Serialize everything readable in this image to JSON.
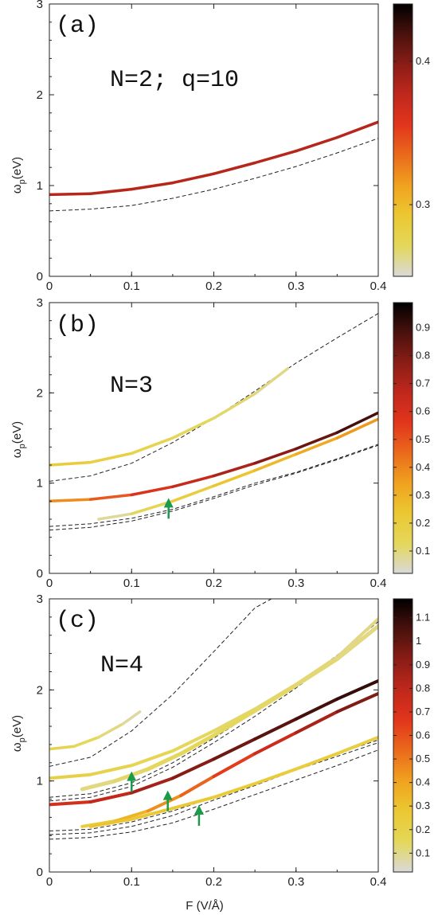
{
  "figure": {
    "xlabel": "F (V/Å)",
    "ylabel_main": "ω",
    "ylabel_sub": "p",
    "ylabel_unit": "(eV)"
  },
  "chart_data": [
    {
      "type": "line",
      "panel_label": "(a)",
      "annotation": "N=2; q=10",
      "x_ticks": [
        "0",
        "0.1",
        "0.2",
        "0.3",
        "0.4"
      ],
      "y_ticks": [
        "0",
        "1",
        "2",
        "3"
      ],
      "xlim": [
        0,
        0.4
      ],
      "ylim": [
        0,
        3
      ],
      "colorbar": {
        "range": [
          0.25,
          0.44
        ],
        "ticks": [
          0.3,
          0.4
        ],
        "tick_labels": [
          "0.3",
          "0.4"
        ]
      },
      "curves": [
        {
          "x": [
            0,
            0.05,
            0.1,
            0.15,
            0.2,
            0.25,
            0.3,
            0.35,
            0.4
          ],
          "y": [
            0.9,
            0.91,
            0.96,
            1.03,
            1.13,
            1.25,
            1.38,
            1.53,
            1.7
          ],
          "c": [
            0.38,
            0.38,
            0.38,
            0.38,
            0.38,
            0.38,
            0.38,
            0.38,
            0.38
          ],
          "w": 3.5
        }
      ],
      "dashed": [
        {
          "x": [
            0,
            0.05,
            0.1,
            0.15,
            0.2,
            0.25,
            0.3,
            0.35,
            0.4
          ],
          "y": [
            0.72,
            0.74,
            0.78,
            0.86,
            0.96,
            1.08,
            1.21,
            1.36,
            1.52
          ]
        }
      ],
      "arrows": []
    },
    {
      "type": "line",
      "panel_label": "(b)",
      "annotation": "N=3",
      "x_ticks": [
        "0",
        "0.1",
        "0.2",
        "0.3",
        "0.4"
      ],
      "y_ticks": [
        "0",
        "1",
        "2",
        "3"
      ],
      "xlim": [
        0,
        0.4
      ],
      "ylim": [
        0,
        3
      ],
      "colorbar": {
        "range": [
          0.02,
          0.99
        ],
        "ticks": [
          0.1,
          0.2,
          0.3,
          0.4,
          0.5,
          0.6,
          0.7,
          0.8,
          0.9
        ],
        "tick_labels": [
          "0.1",
          "0.2",
          "0.3",
          "0.4",
          "0.5",
          "0.6",
          "0.7",
          "0.8",
          "0.9"
        ]
      },
      "curves": [
        {
          "x": [
            0,
            0.05,
            0.1,
            0.15,
            0.2,
            0.25,
            0.29
          ],
          "y": [
            1.2,
            1.23,
            1.33,
            1.5,
            1.72,
            1.99,
            2.27
          ],
          "c": [
            0.22,
            0.2,
            0.17,
            0.14,
            0.12,
            0.1,
            0.08
          ],
          "w": 3.5
        },
        {
          "x": [
            0,
            0.05,
            0.1,
            0.15,
            0.2,
            0.25,
            0.3,
            0.35,
            0.4
          ],
          "y": [
            0.8,
            0.82,
            0.87,
            0.96,
            1.08,
            1.22,
            1.38,
            1.56,
            1.78
          ],
          "c": [
            0.35,
            0.42,
            0.55,
            0.62,
            0.68,
            0.74,
            0.8,
            0.86,
            0.92
          ],
          "w": 3.5
        },
        {
          "x": [
            0.06,
            0.1,
            0.15,
            0.2,
            0.25,
            0.3,
            0.35,
            0.4
          ],
          "y": [
            0.6,
            0.66,
            0.8,
            0.97,
            1.14,
            1.32,
            1.5,
            1.71
          ],
          "c": [
            0.05,
            0.1,
            0.18,
            0.22,
            0.26,
            0.3,
            0.34,
            0.38
          ],
          "w": 3.5
        }
      ],
      "dashed": [
        {
          "x": [
            0,
            0.05,
            0.1,
            0.15,
            0.2,
            0.25,
            0.3,
            0.35,
            0.4
          ],
          "y": [
            1.02,
            1.08,
            1.22,
            1.45,
            1.72,
            2.02,
            2.33,
            2.61,
            2.88
          ]
        },
        {
          "x": [
            0,
            0.05,
            0.1,
            0.15,
            0.2,
            0.25,
            0.3,
            0.35,
            0.4
          ],
          "y": [
            0.52,
            0.55,
            0.61,
            0.71,
            0.85,
            1.0,
            1.12,
            1.27,
            1.43
          ]
        },
        {
          "x": [
            0,
            0.05,
            0.1,
            0.15,
            0.2,
            0.25,
            0.3,
            0.35,
            0.4
          ],
          "y": [
            0.48,
            0.51,
            0.58,
            0.69,
            0.83,
            0.98,
            1.11,
            1.26,
            1.42
          ]
        }
      ],
      "arrows": [
        {
          "x": 0.145,
          "y": 0.8
        }
      ]
    },
    {
      "type": "line",
      "panel_label": "(c)",
      "annotation": "N=4",
      "x_ticks": [
        "0",
        "0.1",
        "0.2",
        "0.3",
        "0.4"
      ],
      "y_ticks": [
        "0",
        "1",
        "2",
        "3"
      ],
      "xlim": [
        0,
        0.4
      ],
      "ylim": [
        0,
        3
      ],
      "colorbar": {
        "range": [
          0.02,
          1.18
        ],
        "ticks": [
          0.1,
          0.2,
          0.3,
          0.4,
          0.5,
          0.6,
          0.7,
          0.8,
          0.9,
          1.0,
          1.1
        ],
        "tick_labels": [
          "0.1",
          "0.2",
          "0.3",
          "0.4",
          "0.5",
          "0.6",
          "0.7",
          "0.8",
          "0.9",
          "1",
          "1.1"
        ]
      },
      "curves": [
        {
          "x": [
            0,
            0.03,
            0.06,
            0.09,
            0.11
          ],
          "y": [
            1.35,
            1.38,
            1.48,
            1.63,
            1.76
          ],
          "c": [
            0.2,
            0.17,
            0.13,
            0.09,
            0.06
          ],
          "w": 3.5
        },
        {
          "x": [
            0,
            0.05,
            0.1,
            0.15,
            0.2,
            0.25,
            0.3,
            0.35,
            0.4
          ],
          "y": [
            1.03,
            1.07,
            1.17,
            1.33,
            1.55,
            1.79,
            2.06,
            2.36,
            2.78
          ],
          "c": [
            0.22,
            0.2,
            0.18,
            0.16,
            0.14,
            0.13,
            0.12,
            0.11,
            0.1
          ],
          "w": 4
        },
        {
          "x": [
            0.04,
            0.08,
            0.12,
            0.16,
            0.2,
            0.25,
            0.3,
            0.35,
            0.4
          ],
          "y": [
            0.91,
            1.0,
            1.13,
            1.3,
            1.5,
            1.77,
            2.05,
            2.34,
            2.7
          ],
          "c": [
            0.1,
            0.12,
            0.14,
            0.15,
            0.15,
            0.14,
            0.13,
            0.12,
            0.1
          ],
          "w": 5
        },
        {
          "x": [
            0,
            0.05,
            0.1,
            0.15,
            0.2,
            0.25,
            0.3,
            0.35,
            0.4
          ],
          "y": [
            0.74,
            0.77,
            0.87,
            1.03,
            1.24,
            1.46,
            1.68,
            1.9,
            2.1
          ],
          "c": [
            0.7,
            0.75,
            0.82,
            0.9,
            0.96,
            1.0,
            1.04,
            1.08,
            1.1
          ],
          "w": 4
        },
        {
          "x": [
            0.04,
            0.08,
            0.12,
            0.16,
            0.2,
            0.25,
            0.3,
            0.35,
            0.4
          ],
          "y": [
            0.5,
            0.56,
            0.67,
            0.84,
            1.05,
            1.3,
            1.53,
            1.76,
            1.96
          ],
          "c": [
            0.2,
            0.3,
            0.4,
            0.5,
            0.6,
            0.7,
            0.8,
            0.9,
            0.98
          ],
          "w": 4
        },
        {
          "x": [
            0.05,
            0.1,
            0.15,
            0.2,
            0.25,
            0.3,
            0.35,
            0.4
          ],
          "y": [
            0.5,
            0.58,
            0.7,
            0.82,
            0.97,
            1.13,
            1.3,
            1.48
          ],
          "c": [
            0.3,
            0.28,
            0.27,
            0.26,
            0.25,
            0.24,
            0.23,
            0.22
          ],
          "w": 4
        }
      ],
      "dashed": [
        {
          "x": [
            0,
            0.05,
            0.1,
            0.15,
            0.2,
            0.25,
            0.27
          ],
          "y": [
            1.16,
            1.26,
            1.55,
            1.95,
            2.42,
            2.9,
            3.0
          ]
        },
        {
          "x": [
            0,
            0.05,
            0.1,
            0.15,
            0.2,
            0.25,
            0.3,
            0.35,
            0.4
          ],
          "y": [
            0.82,
            0.86,
            0.98,
            1.2,
            1.47,
            1.76,
            2.06,
            2.38,
            2.75
          ]
        },
        {
          "x": [
            0,
            0.05,
            0.1,
            0.15,
            0.2,
            0.25,
            0.3,
            0.35,
            0.4
          ],
          "y": [
            0.78,
            0.82,
            0.94,
            1.15,
            1.42,
            1.71,
            2.02,
            2.36,
            2.72
          ]
        },
        {
          "x": [
            0,
            0.05,
            0.1,
            0.15,
            0.2,
            0.25,
            0.3,
            0.35,
            0.4
          ],
          "y": [
            0.45,
            0.47,
            0.55,
            0.67,
            0.82,
            0.98,
            1.14,
            1.3,
            1.45
          ]
        },
        {
          "x": [
            0,
            0.05,
            0.1,
            0.15,
            0.2,
            0.25,
            0.3,
            0.35,
            0.4
          ],
          "y": [
            0.41,
            0.43,
            0.5,
            0.62,
            0.79,
            0.95,
            1.12,
            1.27,
            1.42
          ]
        },
        {
          "x": [
            0,
            0.05,
            0.1,
            0.15,
            0.2,
            0.25,
            0.3,
            0.35,
            0.4
          ],
          "y": [
            0.36,
            0.38,
            0.44,
            0.54,
            0.69,
            0.85,
            1.01,
            1.17,
            1.34
          ]
        }
      ],
      "arrows": [
        {
          "x": 0.1,
          "y": 1.07
        },
        {
          "x": 0.144,
          "y": 0.86
        },
        {
          "x": 0.182,
          "y": 0.7
        }
      ]
    }
  ],
  "colors": {
    "colormap": [
      "#d9d9d9",
      "#e4d75a",
      "#ebc832",
      "#f0a21f",
      "#ea6a1c",
      "#e2351c",
      "#c0281c",
      "#8a1d16",
      "#4a110d",
      "#000000"
    ],
    "arrow": "#1a9a4a",
    "axes": "#222222",
    "dashed": "#222222"
  }
}
